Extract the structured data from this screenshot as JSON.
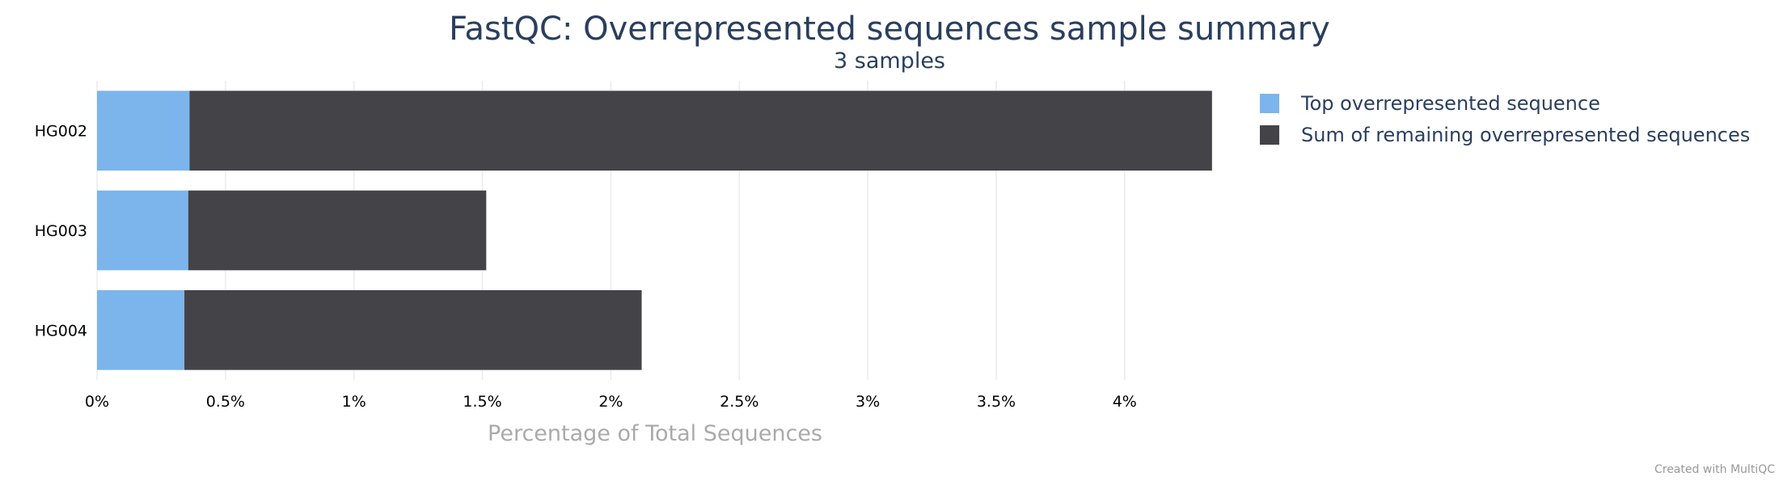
{
  "chart_data": {
    "type": "bar",
    "orientation": "horizontal",
    "stacked": true,
    "title": "FastQC: Overrepresented sequences sample summary",
    "subtitle": "3 samples",
    "xlabel": "Percentage of Total Sequences",
    "ylabel": "",
    "xlim": [
      0,
      4.35
    ],
    "x_ticks": [
      0,
      0.5,
      1,
      1.5,
      2,
      2.5,
      3,
      3.5,
      4
    ],
    "x_tick_labels": [
      "0%",
      "0.5%",
      "1%",
      "1.5%",
      "2%",
      "2.5%",
      "3%",
      "3.5%",
      "4%"
    ],
    "grid": true,
    "legend_position": "top-right",
    "categories": [
      "HG002",
      "HG003",
      "HG004"
    ],
    "series": [
      {
        "name": "Top overrepresented sequence",
        "color": "#7cb5ec",
        "values": [
          0.36,
          0.355,
          0.34
        ]
      },
      {
        "name": "Sum of remaining overrepresented sequences",
        "color": "#434348",
        "values": [
          3.98,
          1.16,
          1.78
        ]
      }
    ]
  },
  "footer": {
    "credit": "Created with MultiQC"
  }
}
